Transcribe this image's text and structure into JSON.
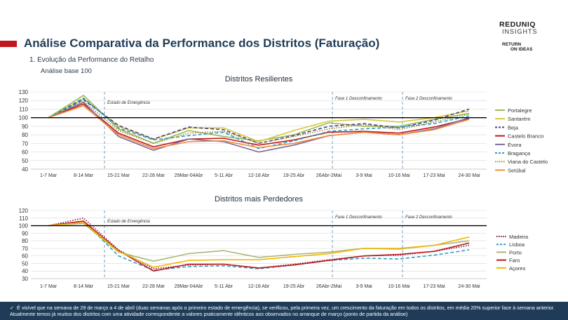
{
  "header": {
    "title": "Análise Comparativa da Performance dos Distritos (Faturação)",
    "subtitle": "1.   Evolução da Performance do Retalho",
    "base_note": "Análise base 100",
    "logo_main": "REDUNIQ",
    "logo_sub": "INSIGHTS",
    "logo_r1": "RETURN",
    "logo_r2": "ON IDEAS",
    "accent_color": "#c0161e",
    "title_color": "#1f3b57"
  },
  "chart_data": [
    {
      "type": "line",
      "title": "Distritos Resilientes",
      "categories": [
        "1-7 Mar",
        "8-14 Mar",
        "15-21 Mar",
        "22-28 Mar",
        "29Mar-04Abr",
        "5-11 Abr",
        "12-18 Abr",
        "19-25 Abr",
        "26Abr-2Mai",
        "3-9 Mai",
        "10-16 Mai",
        "17-23 Mai",
        "24-30 Mai"
      ],
      "ylim": [
        40,
        130
      ],
      "yticks": [
        40,
        50,
        60,
        70,
        80,
        90,
        100,
        110,
        120,
        130
      ],
      "baseline": 100,
      "annotations": [
        {
          "text": "Estado de Emergência",
          "at_category": 2
        },
        {
          "text": "Fase 1 Desconfinamento",
          "at_category": 8.5
        },
        {
          "text": "Fase 2 Desconfinamento",
          "at_category": 10.5
        }
      ],
      "legend_position": "right",
      "series": [
        {
          "name": "Portalegre",
          "color": "#9bbb59",
          "dash": "solid",
          "values": [
            100,
            126,
            87,
            70,
            85,
            78,
            73,
            80,
            94,
            90,
            90,
            98,
            105
          ]
        },
        {
          "name": "Santarém",
          "color": "#d7c73a",
          "dash": "solid",
          "values": [
            100,
            122,
            90,
            75,
            88,
            88,
            72,
            85,
            96,
            98,
            95,
            100,
            108
          ]
        },
        {
          "name": "Beja",
          "color": "#4b3f8c",
          "dash": "dash",
          "values": [
            100,
            121,
            91,
            75,
            89,
            86,
            70,
            79,
            90,
            93,
            88,
            97,
            110
          ]
        },
        {
          "name": "Castelo Branco",
          "color": "#c0161e",
          "dash": "solid",
          "values": [
            100,
            116,
            82,
            66,
            75,
            76,
            68,
            74,
            83,
            84,
            82,
            89,
            99
          ]
        },
        {
          "name": "Évora",
          "color": "#7a6a9a",
          "dash": "solid",
          "values": [
            100,
            118,
            78,
            62,
            75,
            72,
            60,
            68,
            79,
            83,
            80,
            87,
            100
          ]
        },
        {
          "name": "Bragança",
          "color": "#2f9fc1",
          "dash": "dash",
          "values": [
            100,
            123,
            88,
            74,
            79,
            83,
            64,
            73,
            84,
            87,
            89,
            93,
            102
          ]
        },
        {
          "name": "Viana do Castelo",
          "color": "#9c8a2a",
          "dash": "dot",
          "values": [
            100,
            119,
            85,
            70,
            82,
            84,
            70,
            78,
            87,
            92,
            86,
            95,
            104
          ]
        },
        {
          "name": "Setúbal",
          "color": "#f08c3a",
          "dash": "solid",
          "values": [
            100,
            114,
            80,
            64,
            72,
            73,
            65,
            70,
            79,
            83,
            80,
            86,
            98
          ]
        }
      ]
    },
    {
      "type": "line",
      "title": "Distritos mais Perdedores",
      "categories": [
        "1-7 Mar",
        "8-14 Mar",
        "15-21 Mar",
        "22-28 Mar",
        "29Mar-04Abr",
        "5-11 Abr",
        "12-18 Abr",
        "19-25 Abr",
        "26Abr-2Mai",
        "3-9 Mai",
        "10-16 Mai",
        "17-23 Mai",
        "24-30 Mai"
      ],
      "ylim": [
        30,
        120
      ],
      "yticks": [
        30,
        40,
        50,
        60,
        70,
        80,
        90,
        100,
        110,
        120
      ],
      "baseline": 100,
      "annotations": [
        {
          "text": "Estado de Emergência",
          "at_category": 2
        },
        {
          "text": "Fase 1 Desconfinamento",
          "at_category": 8.5
        },
        {
          "text": "Fase 2 Desconfinamento",
          "at_category": 10.5
        }
      ],
      "legend_position": "right",
      "series": [
        {
          "name": "Madeira",
          "color": "#7a1830",
          "dash": "dot",
          "values": [
            100,
            110,
            68,
            43,
            48,
            49,
            44,
            49,
            55,
            60,
            61,
            66,
            74
          ]
        },
        {
          "name": "Lisboa",
          "color": "#2f9fc1",
          "dash": "dash",
          "values": [
            100,
            106,
            60,
            41,
            46,
            47,
            43,
            48,
            54,
            57,
            56,
            61,
            68
          ]
        },
        {
          "name": "Porto",
          "color": "#a8b97a",
          "dash": "solid",
          "values": [
            100,
            103,
            65,
            53,
            63,
            67,
            58,
            62,
            65,
            70,
            69,
            74,
            80
          ]
        },
        {
          "name": "Faro",
          "color": "#c0161e",
          "dash": "solid",
          "values": [
            100,
            106,
            67,
            40,
            49,
            49,
            44,
            48,
            54,
            60,
            62,
            66,
            77
          ]
        },
        {
          "name": "Açores",
          "color": "#f2b705",
          "dash": "solid",
          "values": [
            100,
            104,
            66,
            45,
            54,
            55,
            55,
            59,
            63,
            70,
            70,
            74,
            85
          ]
        }
      ]
    }
  ],
  "footer": {
    "check_icon": "check-icon",
    "text": "É visível que na semana de 29 de março a 4 de abril (duas semanas após o primeiro estado de emergência), se verificou, pela primeira vez, um crescimento da faturação em todos os distritos, em média 20% superior face à semana anterior. Atualmente temos já muitos dos distritos com uma atividade correspondente a valores praticamente idênticos aos observados no arranque de março (ponto de partida da análise)"
  }
}
